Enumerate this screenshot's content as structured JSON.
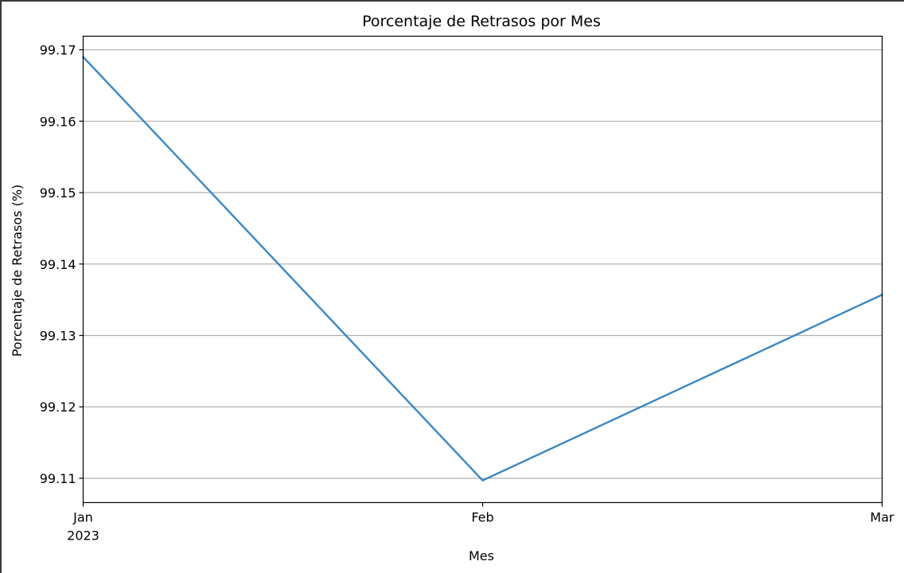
{
  "chart_data": {
    "type": "line",
    "title": "Porcentaje de Retrasos por Mes",
    "xlabel": "Mes",
    "ylabel": "Porcentaje de Retrasos (%)",
    "x": [
      "2023-01",
      "2023-02",
      "2023-03"
    ],
    "x_tick_labels": [
      {
        "month": "Jan",
        "year": "2023"
      },
      {
        "month": "Feb",
        "year": ""
      },
      {
        "month": "Mar",
        "year": ""
      }
    ],
    "series": [
      {
        "values": [
          99.169,
          99.1097,
          99.1357
        ],
        "color": "#3b87c2"
      }
    ],
    "ylim": [
      99.1066,
      99.1719
    ],
    "yticks": [
      "99.11",
      "99.12",
      "99.13",
      "99.14",
      "99.15",
      "99.16",
      "99.17"
    ],
    "grid": "horizontal",
    "legend": "none"
  }
}
